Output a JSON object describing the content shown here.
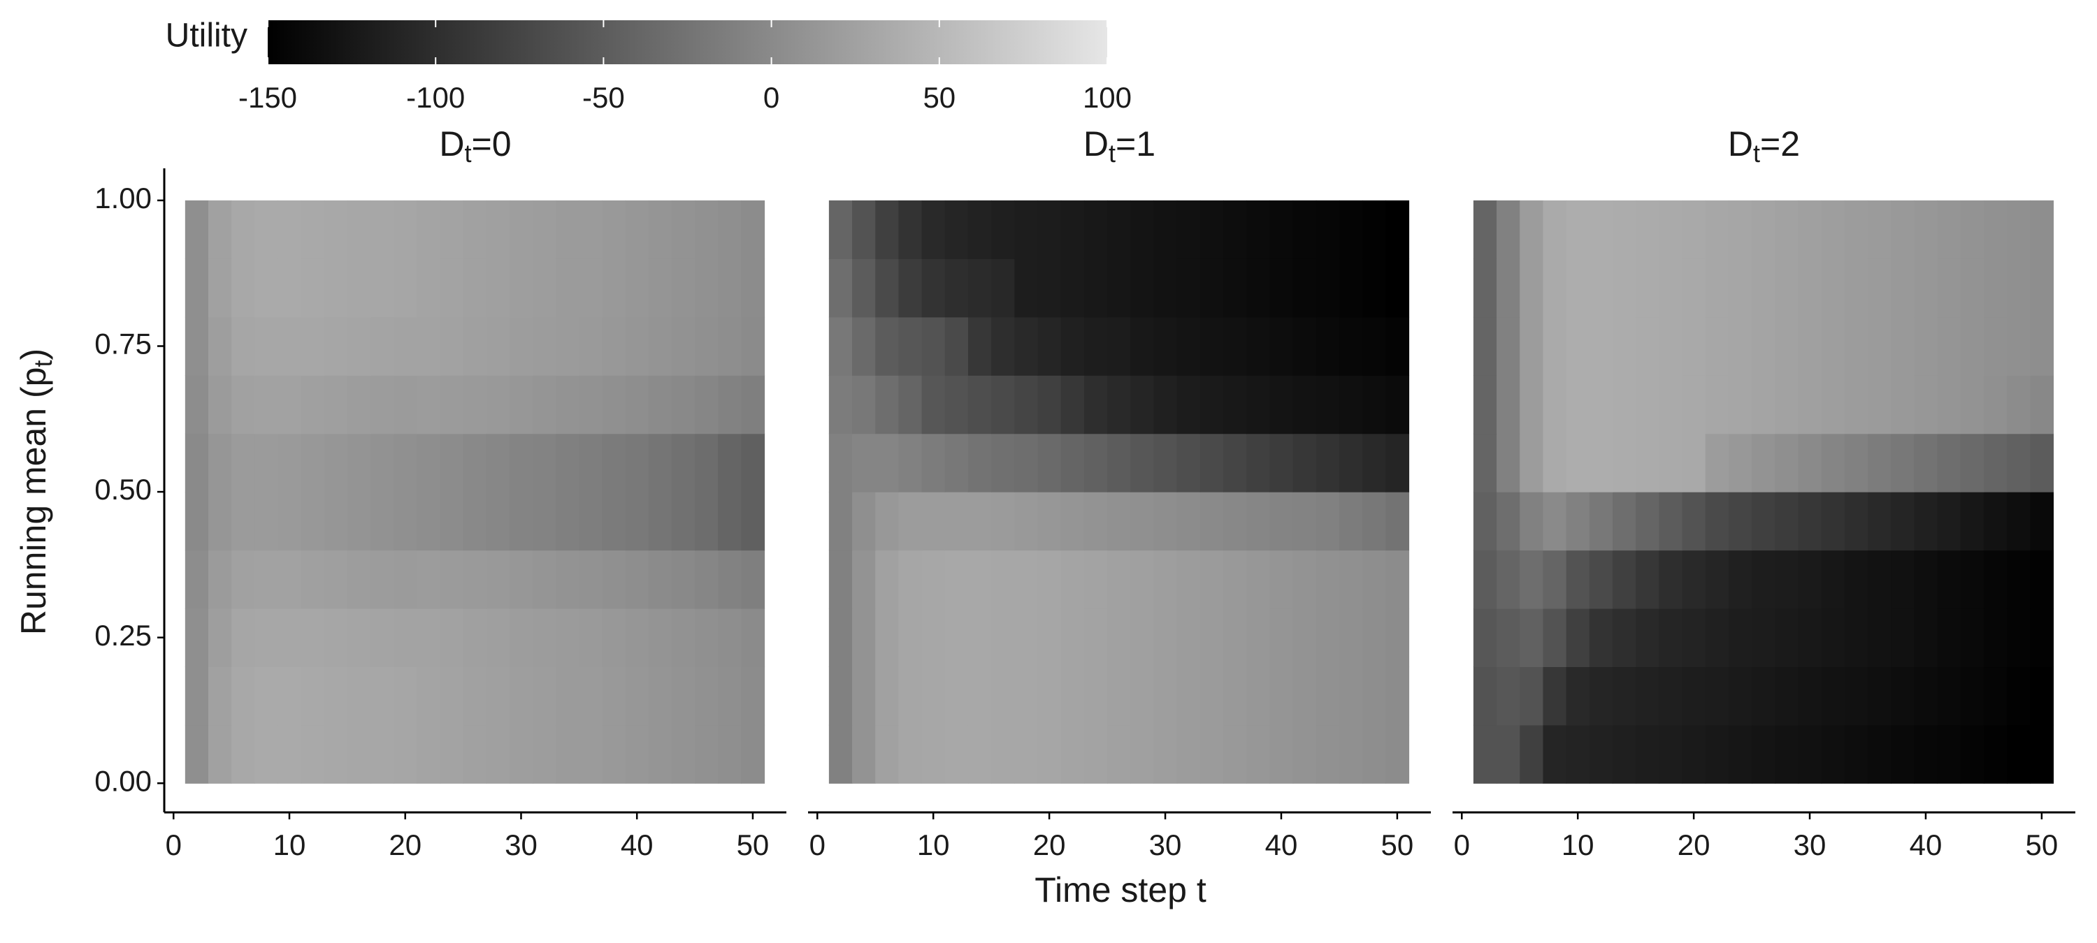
{
  "chart_data": {
    "type": "heatmap",
    "x_label": "Time step t",
    "y_label_parts": [
      "Running mean (p",
      "t",
      ")"
    ],
    "legend": {
      "title": "Utility",
      "lim": [
        -150,
        100
      ],
      "ticks": [
        -150,
        -100,
        -50,
        0,
        50,
        100
      ],
      "low_color": "#000000",
      "high_color": "#e6e6e6"
    },
    "xlim": [
      -0.8,
      52.9
    ],
    "xticks": [
      0,
      10,
      20,
      30,
      40,
      50
    ],
    "ylim": [
      -0.05,
      1.055
    ],
    "yticks": [
      {
        "value": 0,
        "label": "0.00"
      },
      {
        "value": 0.25,
        "label": "0.25"
      },
      {
        "value": 0.5,
        "label": "0.50"
      },
      {
        "value": 0.75,
        "label": "0.75"
      },
      {
        "value": 1,
        "label": "1.00"
      }
    ],
    "panels": [
      {
        "title_parts": [
          "D",
          "t",
          "=0"
        ],
        "x": [
          2,
          4,
          6,
          8,
          10,
          12,
          14,
          16,
          18,
          20,
          22,
          24,
          26,
          28,
          30,
          32,
          34,
          36,
          38,
          40,
          42,
          44,
          46,
          48,
          50
        ],
        "y": [
          0.05,
          0.15,
          0.25,
          0.35,
          0.45,
          0.55,
          0.65,
          0.75,
          0.85,
          0.95
        ],
        "z": [
          [
            5,
            25,
            33,
            35,
            35,
            34,
            33,
            32,
            31,
            30,
            28,
            27,
            25,
            24,
            22,
            21,
            19,
            18,
            16,
            14,
            12,
            10,
            8,
            5,
            2
          ],
          [
            5,
            25,
            33,
            35,
            35,
            34,
            33,
            32,
            31,
            30,
            28,
            27,
            25,
            24,
            22,
            21,
            19,
            18,
            16,
            14,
            12,
            10,
            8,
            5,
            2
          ],
          [
            5,
            22,
            30,
            32,
            32,
            31,
            30,
            29,
            28,
            27,
            27,
            26,
            24,
            23,
            21,
            20,
            18,
            17,
            15,
            13,
            11,
            9,
            7,
            4,
            1
          ],
          [
            3,
            19,
            25,
            26,
            26,
            24,
            23,
            21,
            20,
            19,
            20,
            19,
            17,
            16,
            14,
            12,
            10,
            9,
            6,
            4,
            1,
            -1,
            -4,
            -9,
            -12
          ],
          [
            0,
            13,
            18,
            18,
            17,
            15,
            13,
            11,
            9,
            7,
            4,
            2,
            -1,
            -3,
            -6,
            -8,
            -11,
            -13,
            -16,
            -19,
            -23,
            -27,
            -32,
            -40,
            -46
          ],
          [
            0,
            13,
            18,
            18,
            17,
            15,
            13,
            11,
            9,
            7,
            4,
            2,
            -1,
            -3,
            -6,
            -8,
            -11,
            -13,
            -16,
            -19,
            -23,
            -27,
            -32,
            -40,
            -46
          ],
          [
            3,
            19,
            25,
            26,
            26,
            24,
            23,
            21,
            20,
            19,
            20,
            19,
            17,
            16,
            14,
            12,
            10,
            9,
            6,
            4,
            1,
            -1,
            -4,
            -9,
            -12
          ],
          [
            5,
            22,
            30,
            32,
            32,
            31,
            30,
            29,
            28,
            27,
            27,
            26,
            24,
            23,
            21,
            20,
            18,
            17,
            15,
            13,
            11,
            9,
            7,
            4,
            1
          ],
          [
            5,
            25,
            33,
            35,
            35,
            34,
            33,
            32,
            31,
            30,
            28,
            27,
            25,
            24,
            22,
            21,
            19,
            18,
            16,
            14,
            12,
            10,
            8,
            5,
            2
          ],
          [
            5,
            25,
            33,
            35,
            35,
            34,
            33,
            32,
            31,
            30,
            28,
            27,
            25,
            24,
            22,
            21,
            19,
            18,
            16,
            14,
            12,
            10,
            8,
            5,
            2
          ]
        ]
      },
      {
        "title_parts": [
          "D",
          "t",
          "=1"
        ],
        "x": [
          2,
          4,
          6,
          8,
          10,
          12,
          14,
          16,
          18,
          20,
          22,
          24,
          26,
          28,
          30,
          32,
          34,
          36,
          38,
          40,
          42,
          44,
          46,
          48,
          50
        ],
        "y": [
          0.05,
          0.15,
          0.25,
          0.35,
          0.45,
          0.55,
          0.65,
          0.75,
          0.85,
          0.95
        ],
        "z": [
          [
            -10,
            10,
            25,
            30,
            32,
            33,
            33,
            32,
            31,
            30,
            28,
            27,
            25,
            24,
            22,
            20,
            18,
            16,
            14,
            12,
            10,
            8,
            6,
            4,
            2
          ],
          [
            -10,
            10,
            25,
            30,
            32,
            33,
            33,
            32,
            31,
            30,
            28,
            27,
            25,
            24,
            22,
            20,
            18,
            16,
            14,
            12,
            10,
            8,
            6,
            4,
            2
          ],
          [
            -10,
            10,
            25,
            30,
            32,
            33,
            33,
            32,
            31,
            30,
            28,
            27,
            25,
            24,
            22,
            20,
            18,
            16,
            14,
            12,
            10,
            8,
            6,
            4,
            2
          ],
          [
            -10,
            10,
            25,
            30,
            32,
            33,
            33,
            32,
            31,
            30,
            28,
            27,
            25,
            24,
            22,
            20,
            18,
            16,
            14,
            12,
            10,
            8,
            6,
            4,
            2
          ],
          [
            -10,
            5,
            15,
            20,
            20,
            20,
            20,
            18,
            16,
            14,
            12,
            10,
            8,
            6,
            4,
            2,
            0,
            -2,
            -4,
            -6,
            -8,
            -10,
            -15,
            -20,
            -25
          ],
          [
            -10,
            -5,
            -5,
            -10,
            -15,
            -20,
            -25,
            -28,
            -30,
            -35,
            -40,
            -45,
            -50,
            -55,
            -60,
            -65,
            -70,
            -75,
            -80,
            -85,
            -90,
            -95,
            -100,
            -105,
            -110
          ],
          [
            -15,
            -20,
            -30,
            -40,
            -55,
            -60,
            -65,
            -70,
            -75,
            -80,
            -90,
            -100,
            -105,
            -110,
            -115,
            -120,
            -122,
            -124,
            -126,
            -128,
            -130,
            -132,
            -134,
            -136,
            -138
          ],
          [
            -20,
            -35,
            -50,
            -55,
            -60,
            -70,
            -90,
            -100,
            -105,
            -110,
            -115,
            -118,
            -120,
            -124,
            -126,
            -128,
            -130,
            -132,
            -134,
            -136,
            -138,
            -140,
            -142,
            -144,
            -146
          ],
          [
            -30,
            -50,
            -70,
            -85,
            -95,
            -100,
            -103,
            -106,
            -118,
            -120,
            -122,
            -124,
            -126,
            -128,
            -130,
            -132,
            -134,
            -136,
            -138,
            -140,
            -142,
            -144,
            -146,
            -148,
            -150
          ],
          [
            -40,
            -60,
            -80,
            -95,
            -105,
            -110,
            -113,
            -116,
            -118,
            -120,
            -122,
            -124,
            -126,
            -128,
            -130,
            -132,
            -134,
            -136,
            -138,
            -140,
            -142,
            -144,
            -146,
            -148,
            -150
          ]
        ]
      },
      {
        "title_parts": [
          "D",
          "t",
          "=2"
        ],
        "x": [
          2,
          4,
          6,
          8,
          10,
          12,
          14,
          16,
          18,
          20,
          22,
          24,
          26,
          28,
          30,
          32,
          34,
          36,
          38,
          40,
          42,
          44,
          46,
          48,
          50
        ],
        "y": [
          0.05,
          0.15,
          0.25,
          0.35,
          0.45,
          0.55,
          0.65,
          0.75,
          0.85,
          0.95
        ],
        "z": [
          [
            -60,
            -60,
            -80,
            -110,
            -112,
            -114,
            -116,
            -118,
            -120,
            -122,
            -124,
            -126,
            -128,
            -130,
            -132,
            -134,
            -136,
            -138,
            -140,
            -142,
            -144,
            -146,
            -148,
            -150,
            -150
          ],
          [
            -60,
            -55,
            -60,
            -90,
            -105,
            -110,
            -112,
            -114,
            -116,
            -118,
            -120,
            -122,
            -124,
            -126,
            -128,
            -130,
            -132,
            -134,
            -136,
            -138,
            -140,
            -142,
            -145,
            -148,
            -150
          ],
          [
            -55,
            -50,
            -45,
            -60,
            -80,
            -95,
            -100,
            -105,
            -110,
            -112,
            -115,
            -118,
            -120,
            -122,
            -124,
            -126,
            -128,
            -130,
            -132,
            -135,
            -138,
            -140,
            -143,
            -146,
            -148
          ],
          [
            -50,
            -40,
            -30,
            -40,
            -60,
            -70,
            -80,
            -90,
            -100,
            -105,
            -110,
            -115,
            -118,
            -120,
            -122,
            -125,
            -128,
            -130,
            -132,
            -135,
            -138,
            -140,
            -143,
            -146,
            -148
          ],
          [
            -45,
            -30,
            -10,
            0,
            -10,
            -20,
            -30,
            -40,
            -50,
            -60,
            -70,
            -75,
            -80,
            -85,
            -90,
            -95,
            -100,
            -105,
            -110,
            -115,
            -120,
            -125,
            -130,
            -135,
            -140
          ],
          [
            -40,
            -10,
            20,
            35,
            38,
            38,
            37,
            36,
            35,
            34,
            20,
            15,
            10,
            5,
            0,
            -5,
            -10,
            -15,
            -20,
            -25,
            -30,
            -35,
            -40,
            -45,
            -50
          ],
          [
            -40,
            -10,
            20,
            35,
            38,
            38,
            37,
            36,
            35,
            34,
            32,
            30,
            28,
            26,
            24,
            22,
            20,
            18,
            16,
            14,
            12,
            10,
            6,
            2,
            -2
          ],
          [
            -40,
            -10,
            20,
            35,
            38,
            38,
            37,
            36,
            35,
            34,
            32,
            30,
            28,
            26,
            24,
            22,
            20,
            18,
            16,
            14,
            12,
            10,
            8,
            6,
            4
          ],
          [
            -40,
            -10,
            20,
            35,
            38,
            38,
            37,
            36,
            35,
            34,
            32,
            30,
            28,
            26,
            24,
            22,
            20,
            18,
            16,
            14,
            12,
            10,
            8,
            6,
            4
          ],
          [
            -40,
            -10,
            20,
            35,
            38,
            38,
            37,
            36,
            35,
            34,
            32,
            30,
            28,
            26,
            24,
            22,
            20,
            18,
            16,
            14,
            12,
            10,
            8,
            6,
            4
          ]
        ]
      }
    ]
  }
}
